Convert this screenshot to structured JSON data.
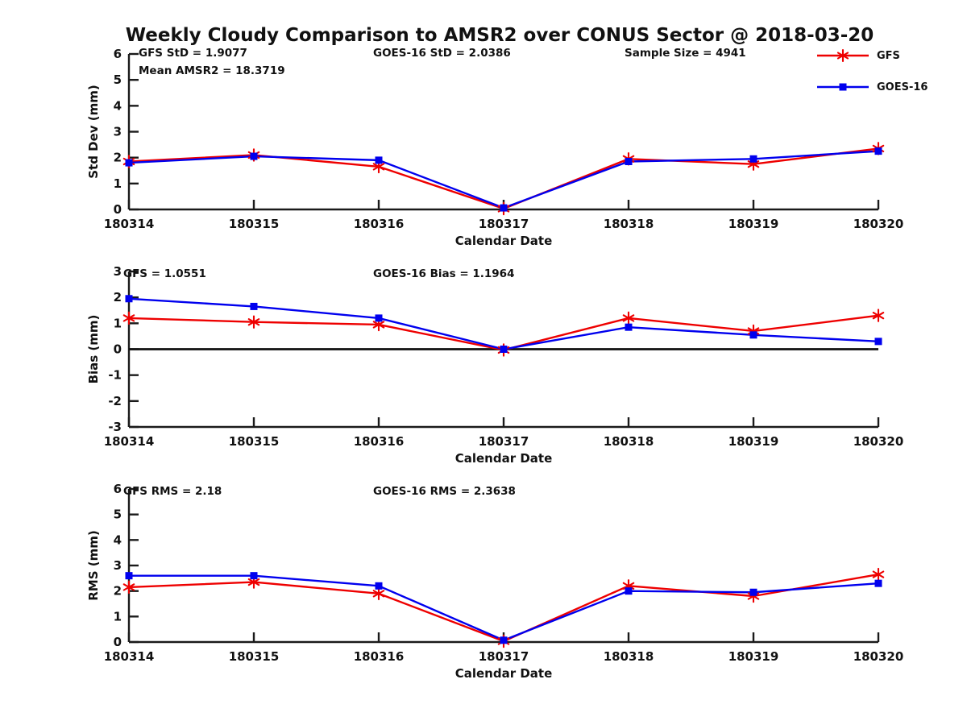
{
  "title": "Weekly Cloudy Comparison to AMSR2 over CONUS Sector @ 2018-03-20",
  "legend": {
    "items": [
      {
        "label": "GFS",
        "color": "#ee0000",
        "marker": "asterisk"
      },
      {
        "label": "GOES-16",
        "color": "#0000ee",
        "marker": "square"
      }
    ]
  },
  "chart_data": [
    {
      "type": "line",
      "id": "stddev-chart",
      "xlabel": "Calendar Date",
      "ylabel": "Std Dev (mm)",
      "ylim": [
        0,
        6
      ],
      "ytick_step": 1,
      "grid": false,
      "legend_position": "top-right-outside",
      "categories": [
        "180314",
        "180315",
        "180316",
        "180317",
        "180318",
        "180319",
        "180320"
      ],
      "series": [
        {
          "name": "GFS",
          "color": "#ee0000",
          "marker": "asterisk",
          "values": [
            1.85,
            2.1,
            1.65,
            0.03,
            1.95,
            1.75,
            2.35
          ]
        },
        {
          "name": "GOES-16",
          "color": "#0000ee",
          "marker": "square",
          "values": [
            1.8,
            2.05,
            1.9,
            0.06,
            1.85,
            1.95,
            2.25
          ]
        }
      ],
      "annotations": [
        {
          "text": "GFS StD = 1.9077",
          "row": 0,
          "col": 0
        },
        {
          "text": "GOES-16 StD = 2.0386",
          "row": 0,
          "col": 1
        },
        {
          "text": "Sample Size = 4941",
          "row": 0,
          "col": 2
        },
        {
          "text": "Mean AMSR2 = 18.3719",
          "row": 1,
          "col": 0
        }
      ]
    },
    {
      "type": "line",
      "id": "bias-chart",
      "xlabel": "Calendar Date",
      "ylabel": "Bias (mm)",
      "ylim": [
        -3,
        3
      ],
      "ytick_step": 1,
      "zero_line": true,
      "grid": false,
      "categories": [
        "180314",
        "180315",
        "180316",
        "180317",
        "180318",
        "180319",
        "180320"
      ],
      "series": [
        {
          "name": "GFS",
          "color": "#ee0000",
          "marker": "asterisk",
          "values": [
            1.2,
            1.05,
            0.95,
            -0.03,
            1.2,
            0.7,
            1.3
          ]
        },
        {
          "name": "GOES-16",
          "color": "#0000ee",
          "marker": "square",
          "values": [
            1.95,
            1.65,
            1.2,
            0.0,
            0.85,
            0.55,
            0.3
          ]
        }
      ],
      "annotations": [
        {
          "text": "GFS = 1.0551",
          "row": 0,
          "col": 0
        },
        {
          "text": "GOES-16 Bias  = 1.1964",
          "row": 0,
          "col": 1
        }
      ]
    },
    {
      "type": "line",
      "id": "rms-chart",
      "xlabel": "Calendar Date",
      "ylabel": "RMS (mm)",
      "ylim": [
        0,
        6
      ],
      "ytick_step": 1,
      "grid": false,
      "categories": [
        "180314",
        "180315",
        "180316",
        "180317",
        "180318",
        "180319",
        "180320"
      ],
      "series": [
        {
          "name": "GFS",
          "color": "#ee0000",
          "marker": "asterisk",
          "values": [
            2.15,
            2.35,
            1.9,
            0.03,
            2.2,
            1.8,
            2.65
          ]
        },
        {
          "name": "GOES-16",
          "color": "#0000ee",
          "marker": "square",
          "values": [
            2.6,
            2.6,
            2.2,
            0.07,
            2.0,
            1.95,
            2.3
          ]
        }
      ],
      "annotations": [
        {
          "text": "GFS RMS = 2.18",
          "row": 0,
          "col": 0
        },
        {
          "text": "GOES-16 RMS = 2.3638",
          "row": 0,
          "col": 1
        }
      ]
    }
  ]
}
